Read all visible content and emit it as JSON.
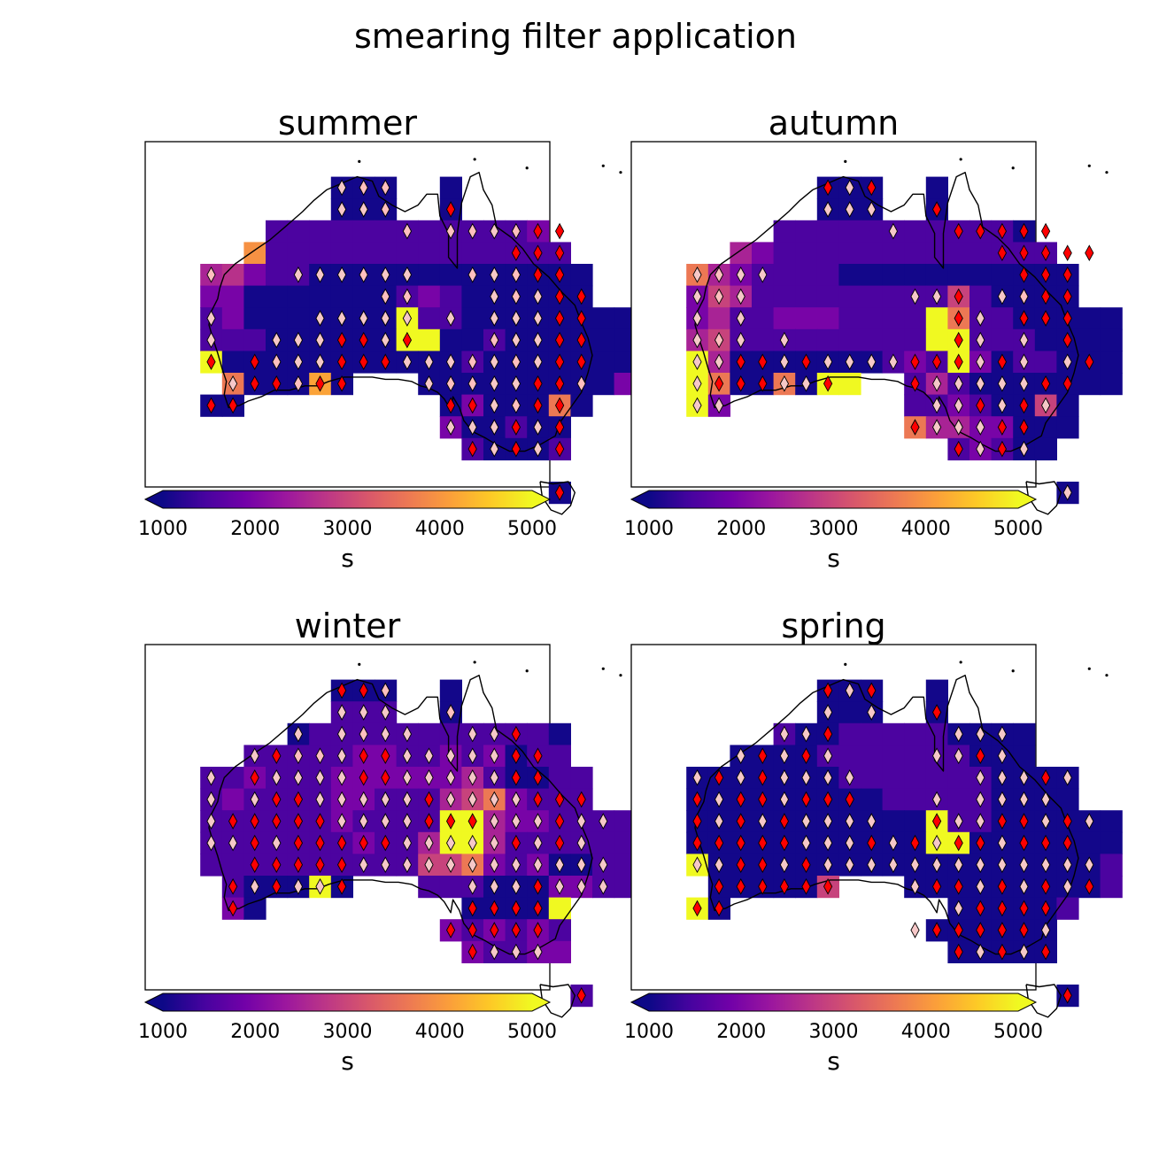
{
  "figure": {
    "title": "smearing filter application"
  },
  "chart_data": [
    {
      "type": "heatmap",
      "title": "summer",
      "colorbar": {
        "label": "s",
        "ticks": [
          "1000",
          "2000",
          "3000",
          "4000",
          "5000"
        ],
        "range": [
          1000,
          5000
        ],
        "extend": "both",
        "colormap": "plasma"
      },
      "rows": [
        "......................",
        "........AAA..A........",
        "........AAA..A........",
        ".....BBBBBBBBBBBBC....",
        "....GBBBBBBBBBBBBBB...",
        "..DMCBBAAAAAAAAAAAAA..",
        "..CCAAAAAAABCBAAAAAA..",
        "..BCAAAAAAAYBBAAAAAAAA",
        "..BBBAAAAAAYYAABAAAAAA",
        "..YAAAAAAAAAAABAAAAAAA",
        "...FAAAHA...AAAAAAAAAC",
        "..AA.........ACAAAFA..",
        ".............CAABAA...",
        "..............BAAAB...",
        "......................",
        "..................A...",
        "......................"
      ],
      "markers": [
        "......................",
        "........hpp...........",
        "........hhp..r........",
        "...........p.pphprr...",
        "................rrr...",
        "..p...hhhphh..phprr...",
        "..........pp...hphrr..",
        "..h....hhhhh.h.hhhrr..",
        "..h..hhhrrhr...phhrr..",
        "..r.rphhrrrhhhphphrr..",
        "...hrrprr...hpphhrrp..",
        "..rr.........rrhprr...",
        ".............hhhrhr...",
        "..............rhrhr...",
        "......................",
        "..................r...",
        "......................"
      ]
    },
    {
      "type": "heatmap",
      "title": "autumn",
      "colorbar": {
        "label": "s",
        "ticks": [
          "1000",
          "2000",
          "3000",
          "4000",
          "5000"
        ],
        "range": [
          1000,
          5000
        ],
        "extend": "both",
        "colormap": "plasma"
      },
      "rows": [
        "......................",
        "........AAA..A........",
        "........AAA..A........",
        "......BBBBBBBBBBBA....",
        "....DCBBBBBBBBBBBBB...",
        "..FDCBBBBAAAAAAAAAAA..",
        "..CEDBBBBBBBBBEBAAAA..",
        "..CDBBCCCBBBBYFBBAAAAA",
        "..DEBBBBBBBBBYYBBBAAAA",
        "..YDAAAAAAABCBYCABBAAA",
        "..YFAAFAYY..BDBAAAAAAA",
        "..YC........BBCBAAEA..",
        "............FDDCCAAA..",
        "..............BCBAA...",
        "......................",
        "...................A..",
        "......................"
      ],
      "markers": [
        "......................",
        "........rhr...........",
        "........hhh..r........",
        "...........h..rrrrr...",
        "................rrrrr.",
        "..hphh...........rrr..",
        "..hph.......hhr.hprr..",
        "..h.h.........rh.rrr..",
        "..hph.h.......rh.h.r..",
        "..hhrrhrhhhhrrrhrh.hr.",
        "..hrrrhhr...rhhhhhrr..",
        "..hh.........hhrhrh...",
        "............rhhhrr....",
        "..............rhrh....",
        "......................",
        "...................h..",
        "......................"
      ]
    },
    {
      "type": "heatmap",
      "title": "winter",
      "colorbar": {
        "label": "s",
        "ticks": [
          "1000",
          "2000",
          "3000",
          "4000",
          "5000"
        ],
        "range": [
          1000,
          5000
        ],
        "extend": "both",
        "colormap": "plasma"
      },
      "rows": [
        "......................",
        "........AAA..A........",
        "........BBB..A........",
        "......ABBBBBBBBBBBA...",
        "....BBBBBCCBBCBCABB...",
        "..BBCBBBCCCCCCDBAABB..",
        "..BCBBBBCCBBBDEFCBBB..",
        "..BBBBBBCBBBBYYDCCBBBB",
        "..BBBBBBBCBBDYYDBBBBBB",
        "..BBBBBBBBBBEEFCBCAABB",
        "...BAAAYA...BBBAAACCBB",
        "...CA.........AAAAY...",
        ".............CBCBCB...",
        "..............CBBCC...",
        "......................",
        "...................B..",
        "......................"
      ],
      "markers": [
        "......................",
        "........rrp...........",
        "........hhh..p........",
        "......h.hphh..hhr.....",
        "....hrpphrrhhhhhrr....",
        "..h.rhhhhrrhhhhhrr....",
        "..h.hrrhhhhhrhhhhrrr..",
        "..hrrrrrhhhhrrrhhhrhh.",
        "..hhrhrrrrrhhhhhrhrh..",
        "....rrrrrhhhhhhhhhhhh.",
        "...rhrhhr.....hhhrhhh.",
        "...r..........rrrr....",
        ".............rrrrr....",
        "..............rhhh....",
        "......................",
        "...................r..",
        "......................"
      ]
    },
    {
      "type": "heatmap",
      "title": "spring",
      "colorbar": {
        "label": "s",
        "ticks": [
          "1000",
          "2000",
          "3000",
          "4000",
          "5000"
        ],
        "range": [
          1000,
          5000
        ],
        "extend": "both",
        "colormap": "plasma"
      },
      "rows": [
        "......................",
        "........AAA..A........",
        "........AAA..A........",
        "......BAABBBBBAAAA....",
        "....AAAABBBBBBBAAA....",
        "..AAAAAAABBBBBBBAAAA..",
        "..AAAAAAAAABBBBBAAAA..",
        "..AAAAAAAAAAAYBBAAAAAA",
        "..AAAAAAAAAAAYYAAAAAAA",
        "..YAAAAAAAAAAAAAAAAAAB",
        "...AAAAAE...AAAAAAAAAB",
        "..YA..........AAAAAB..",
        ".............AAAAAA...",
        "..............AAAAA...",
        "......................",
        "...................A..",
        "......................"
      ],
      "markers": [
        "......................",
        "........rhr...........",
        "........h.h..r........",
        "......hhr.....hhh.....",
        "....hrhrh....hhrh.....",
        "..hrhrhhhh.....hhhrh..",
        "..rhrrhrrr...h.hhhh...",
        "..rhrhrhhhh..rhhrrhrh.",
        "..rrrrrhhhrhrhrrhrrr..",
        "..hhrrhrhhhhhhhhhhhhh.",
        "...rrrrrr...hrrhrhrhr.",
        "..rr..........hrrrr...",
        "............hrrrrrh...",
        "..............rhrhr...",
        "......................",
        "...................r..",
        "......................"
      ]
    }
  ],
  "legend_values": {
    "cell_colors": {
      "A": 1050,
      "B": 1500,
      "C": 1950,
      "D": 2500,
      "E": 2950,
      "F": 3650,
      "G": 3950,
      "H": 4150,
      "M": 2700,
      "Y": 5000
    },
    "marker_colors": {
      "r": "#ff0000",
      "p": "#ffbfbf",
      "h": "#f6c8c8"
    }
  },
  "colormap_stops": [
    "#0d0887",
    "#46039f",
    "#7201a8",
    "#9c179e",
    "#bd3786",
    "#d8576b",
    "#ed7953",
    "#fb9f3a",
    "#fdca26",
    "#f0f921"
  ]
}
